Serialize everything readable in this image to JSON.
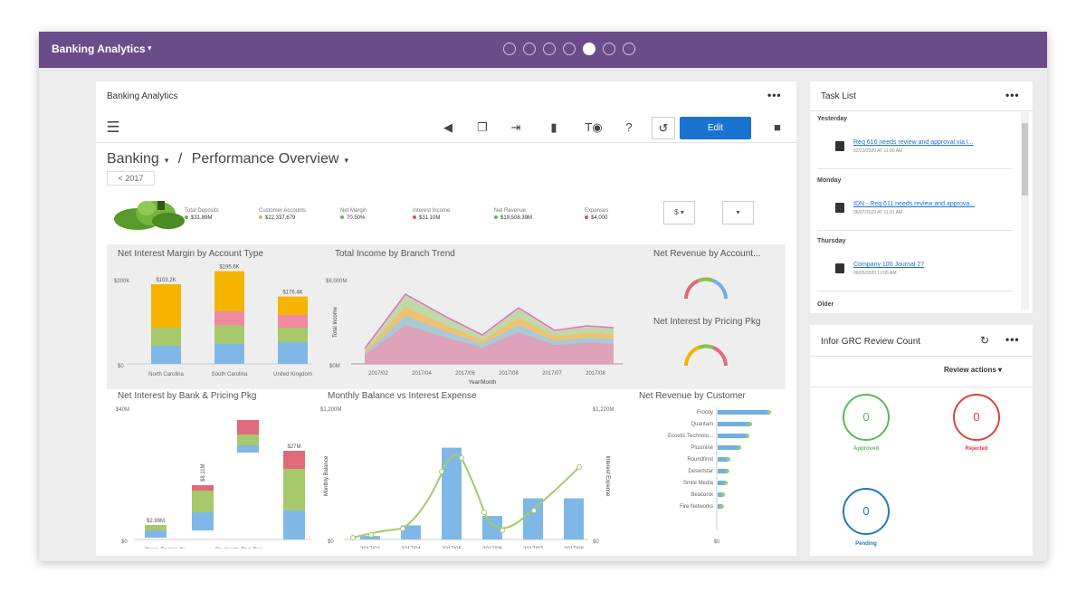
{
  "app": {
    "title": "Banking Analytics",
    "page_dots": [
      false,
      false,
      false,
      false,
      true,
      false,
      false
    ]
  },
  "dashboard": {
    "panel_title": "Banking Analytics",
    "edit_label": "Edit",
    "breadcrumb": [
      "Banking",
      "Performance Overview"
    ],
    "year_filter": "< 2017",
    "kpis": [
      {
        "label": "Total Deposits",
        "value": "$31.89M",
        "color": "#5cb85c"
      },
      {
        "label": "Customer Accounts",
        "value": "$22,337,679",
        "color": "#f0ad4e"
      },
      {
        "label": "Net Margin",
        "value": "70.50%",
        "color": "#5cb85c"
      },
      {
        "label": "Interest Income",
        "value": "$31.10M",
        "color": "#d9534f"
      },
      {
        "label": "Net Revenue",
        "value": "$19,508.39M",
        "color": "#5cb85c"
      },
      {
        "label": "Expenses",
        "value": "$4,000",
        "color": "#d9534f"
      }
    ],
    "select_1": "$",
    "select_2": ""
  },
  "charts": {
    "nim_title": "Net Interest Margin by Account Type",
    "income_title": "Total Income by Branch Trend",
    "netrev_title": "Net Revenue by Account...",
    "pricing_title": "Net Interest by Pricing Pkg",
    "bank_title": "Net Interest by Bank & Pricing Pkg",
    "balance_title": "Monthly Balance vs Interest Expense",
    "customer_title": "Net Revenue by Customer"
  },
  "chart_data": [
    {
      "type": "bar",
      "title": "Net Interest Margin by Account Type",
      "categories": [
        "North Carolina",
        "South Carolina",
        "United Kingdom"
      ],
      "totals_labels": [
        "$103.2K",
        "$195.6K",
        "$176.4K"
      ],
      "ylabel_ticks": [
        "$200K",
        "$0"
      ],
      "series": [
        {
          "color": "#7fb8e6",
          "values": [
            25,
            28,
            30
          ]
        },
        {
          "color": "#a5c96b",
          "values": [
            25,
            25,
            20
          ]
        },
        {
          "color": "#f08a9e",
          "values": [
            0,
            20,
            18
          ]
        },
        {
          "color": "#f5b400",
          "values": [
            60,
            55,
            25
          ]
        }
      ]
    },
    {
      "type": "area",
      "title": "Total Income by Branch Trend",
      "ylabel": "Total Income",
      "xlabel": "Year/Month",
      "x": [
        "2017/02",
        "2017/04",
        "2017/06",
        "2017/08",
        "2017/07",
        "2017/08"
      ],
      "ytick_top": "$8,000M",
      "ytick_bottom": "$0M"
    },
    {
      "type": "bar",
      "title": "Net Interest by Bank & Pricing Pkg",
      "categories": [
        "Cross Region Cr...",
        "General Retail Ber",
        "Payments Plus Doo",
        "Total Balance"
      ],
      "bar_labels": [
        "$2.99M",
        "$8.11M",
        "",
        "$27M"
      ],
      "ytick_top": "$40M",
      "ytick_bottom": "$0"
    },
    {
      "type": "bar",
      "title": "Monthly Balance vs Interest Expense",
      "ylabel": "Monthly Balance",
      "y2label": "Interest Expense",
      "x": [
        "2017/02",
        "2017/04",
        "2017/05",
        "2017/08",
        "2017/07",
        "2017/08"
      ],
      "ytick_top": "$1,200M",
      "ytick_bottom": "$0",
      "y2tick_top": "$1,220M",
      "y2tick_bottom": "$0"
    },
    {
      "type": "bar",
      "title": "Net Revenue by Customer",
      "categories": [
        "Frocity",
        "Quantam",
        "Ecostic Technolo...",
        "Plusmine",
        "Roundfinst",
        "Desertstar",
        "Smile Media",
        "Beaconix",
        "Fire Networks"
      ],
      "values": [
        95,
        60,
        55,
        40,
        20,
        18,
        15,
        10,
        8
      ],
      "xtick_bottom": "$0"
    }
  ],
  "tasks": {
    "title": "Task List",
    "groups": [
      {
        "date": "Yesterday",
        "link": "Req 616 needs review and approval via I...",
        "meta": "02/23/2020 AT 11:00 AM"
      },
      {
        "date": "Monday",
        "link": "IDN - Req 611 needs review and approva...",
        "meta": "06/07/2020 AT 11:01 AM"
      },
      {
        "date": "Thursday",
        "link": "Company 100 Journal 27",
        "meta": "06/05/2020 12:05 AM"
      }
    ],
    "older_label": "Older"
  },
  "grc": {
    "title": "Infor GRC Review Count",
    "review_actions": "Review actions",
    "approved_count": "0",
    "approved_label": "Approved",
    "rejected_count": "0",
    "rejected_label": "Rejected",
    "pending_count": "0",
    "pending_label": "Pending",
    "colors": {
      "approved": "#5cb85c",
      "rejected": "#e0413a",
      "pending": "#1f7ac2"
    }
  }
}
